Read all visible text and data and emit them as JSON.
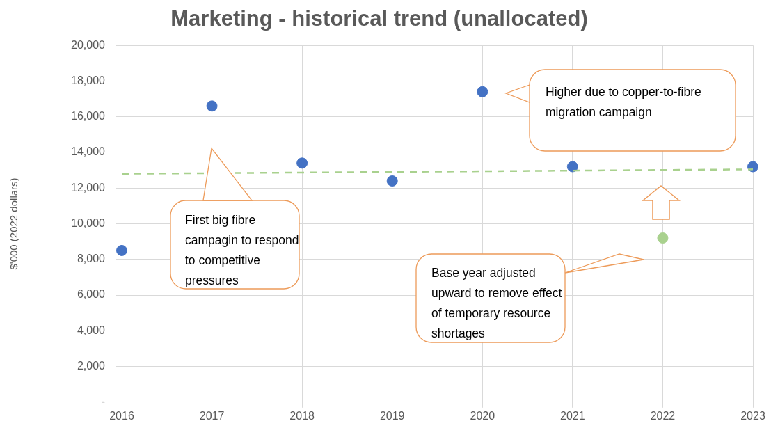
{
  "chart_data": {
    "type": "scatter",
    "title": "Marketing - historical trend (unallocated)",
    "ylabel": "$'000 (2022 dollars)",
    "categories": [
      "2016",
      "2017",
      "2018",
      "2019",
      "2020",
      "2021",
      "2022",
      "2023"
    ],
    "series": [
      {
        "values": [
          8500,
          16600,
          13400,
          12400,
          17400,
          13200,
          9200,
          13200
        ],
        "colors": [
          "#4472c4",
          "#4472c4",
          "#4472c4",
          "#4472c4",
          "#4472c4",
          "#4472c4",
          "#a9d18e",
          "#4472c4"
        ]
      },
      {
        "type": "line",
        "values": [
          12800,
          null,
          null,
          null,
          null,
          null,
          null,
          13050
        ],
        "color": "#a9d18e",
        "line_style": "dashed",
        "marker": "none"
      }
    ],
    "ylim": [
      0,
      20000
    ],
    "yticks": [
      {
        "value": 0,
        "label": "-"
      },
      {
        "value": 2000,
        "label": "2,000"
      },
      {
        "value": 4000,
        "label": "4,000"
      },
      {
        "value": 6000,
        "label": "6,000"
      },
      {
        "value": 8000,
        "label": "8,000"
      },
      {
        "value": 10000,
        "label": "10,000"
      },
      {
        "value": 12000,
        "label": "12,000"
      },
      {
        "value": 14000,
        "label": "14,000"
      },
      {
        "value": 16000,
        "label": "16,000"
      },
      {
        "value": 18000,
        "label": "18,000"
      },
      {
        "value": 20000,
        "label": "20,000"
      }
    ],
    "grid": true,
    "marker": "circle",
    "annotations": [
      "First big fibre campagin to respond to competitive pressures",
      "Higher due to copper-to-fibre migration campaign",
      "Base year adjusted upward to remove effect of temporary resource shortages"
    ]
  }
}
